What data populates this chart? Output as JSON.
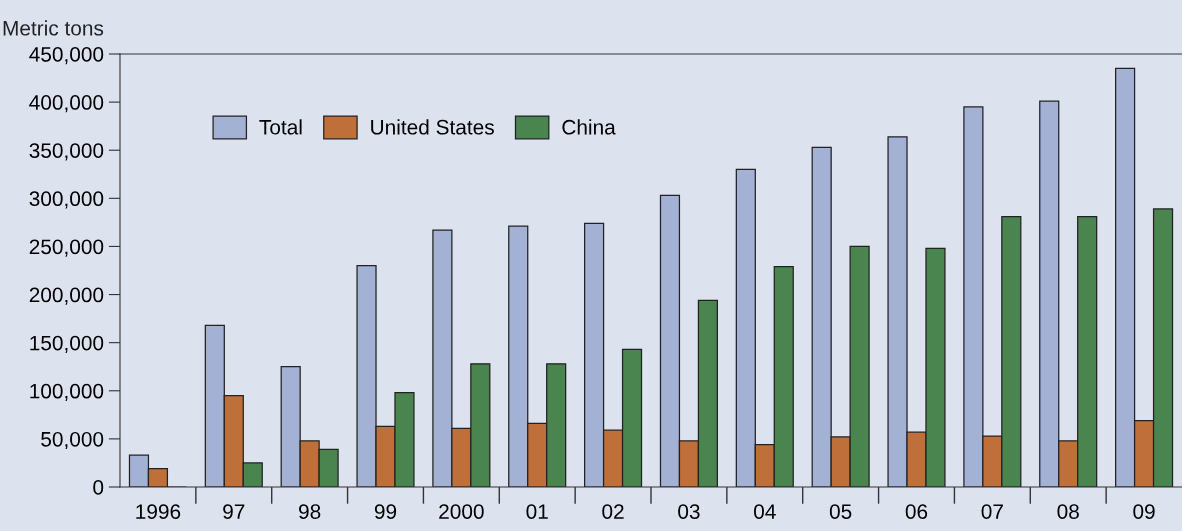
{
  "chart_data": {
    "type": "bar",
    "ylabel": "Metric tons",
    "categories": [
      "1996",
      "97",
      "98",
      "99",
      "2000",
      "01",
      "02",
      "03",
      "04",
      "05",
      "06",
      "07",
      "08",
      "09"
    ],
    "series": [
      {
        "name": "Total",
        "color": "#a3b1d4",
        "values": [
          33000,
          168000,
          125000,
          230000,
          267000,
          271000,
          274000,
          303000,
          330000,
          353000,
          364000,
          395000,
          401000,
          435000
        ]
      },
      {
        "name": "United States",
        "color": "#bf703a",
        "values": [
          19000,
          95000,
          48000,
          63000,
          61000,
          66000,
          59000,
          48000,
          44000,
          52000,
          57000,
          53000,
          48000,
          69000
        ]
      },
      {
        "name": "China",
        "color": "#4a8550",
        "values": [
          null,
          25000,
          39000,
          98000,
          128000,
          128000,
          143000,
          194000,
          229000,
          250000,
          248000,
          281000,
          281000,
          289000
        ]
      }
    ],
    "ylim": [
      0,
      450000
    ],
    "yticks": [
      {
        "value": 0,
        "label": "0"
      },
      {
        "value": 50000,
        "label": "50,000"
      },
      {
        "value": 100000,
        "label": "100,000"
      },
      {
        "value": 150000,
        "label": "150,000"
      },
      {
        "value": 200000,
        "label": "200,000"
      },
      {
        "value": 250000,
        "label": "250,000"
      },
      {
        "value": 300000,
        "label": "300,000"
      },
      {
        "value": 350000,
        "label": "350,000"
      },
      {
        "value": 400000,
        "label": "400,000"
      },
      {
        "value": 450000,
        "label": "450,000"
      }
    ],
    "grid": false,
    "legend": "top left"
  }
}
